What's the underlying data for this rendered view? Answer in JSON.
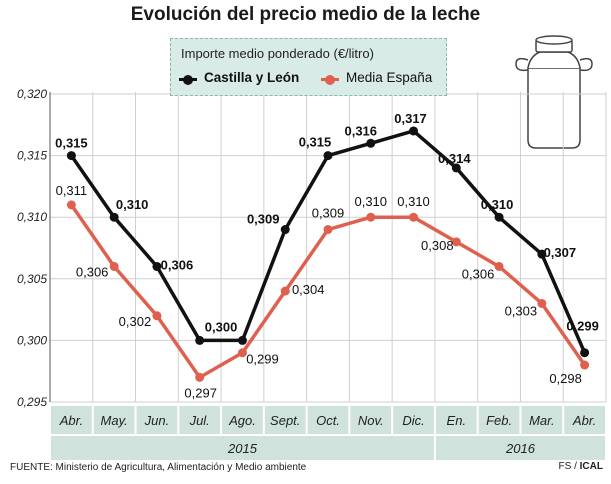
{
  "title": "Evolución del precio medio de la leche",
  "legend_title": "Importe medio ponderado (€/litro)",
  "source": "FUENTE: Ministerio de Agricultura, Alimentación y Medio ambiente",
  "credit_prefix": "FS / ",
  "credit_brand": "ICAL",
  "colors": {
    "castilla": "#111111",
    "espana": "#e06050",
    "band": "#cfe2dc",
    "grid": "#cfcfcf"
  },
  "chart_data": {
    "type": "line",
    "categories": [
      "Abr.",
      "May.",
      "Jun.",
      "Jul.",
      "Ago.",
      "Sept.",
      "Oct.",
      "Nov.",
      "Dic.",
      "En.",
      "Feb.",
      "Mar.",
      "Abr."
    ],
    "year_groups": [
      {
        "label": "2015",
        "span": 9
      },
      {
        "label": "2016",
        "span": 4
      }
    ],
    "series": [
      {
        "name": "Castilla y León",
        "values": [
          0.315,
          0.31,
          0.306,
          0.3,
          0.3,
          0.309,
          0.315,
          0.316,
          0.317,
          0.314,
          0.31,
          0.307,
          0.299
        ]
      },
      {
        "name": "Media España",
        "values": [
          0.311,
          0.306,
          0.302,
          0.297,
          0.299,
          0.304,
          0.309,
          0.31,
          0.31,
          0.308,
          0.306,
          0.303,
          0.298
        ]
      }
    ],
    "series_labels": [
      [
        "0,315",
        "0,310",
        "0,306",
        "0,300",
        "",
        "0,309",
        "0,315",
        "0,316",
        "0,317",
        "0,314",
        "0,310",
        "0,307",
        "0,299"
      ],
      [
        "0,311",
        "0,306",
        "0,302",
        "0,297",
        "0,299",
        "0,304",
        "0,309",
        "0,310",
        "0,310",
        "0,308",
        "0,306",
        "0,303",
        "0,298"
      ]
    ],
    "y_ticks": [
      0.295,
      0.3,
      0.305,
      0.31,
      0.315,
      0.32
    ],
    "y_tick_labels": [
      "0,295",
      "0,300",
      "0,305",
      "0,310",
      "0,315",
      "0,320"
    ],
    "ylim": [
      0.295,
      0.32
    ],
    "grid": true,
    "legend_position": "top-center"
  }
}
